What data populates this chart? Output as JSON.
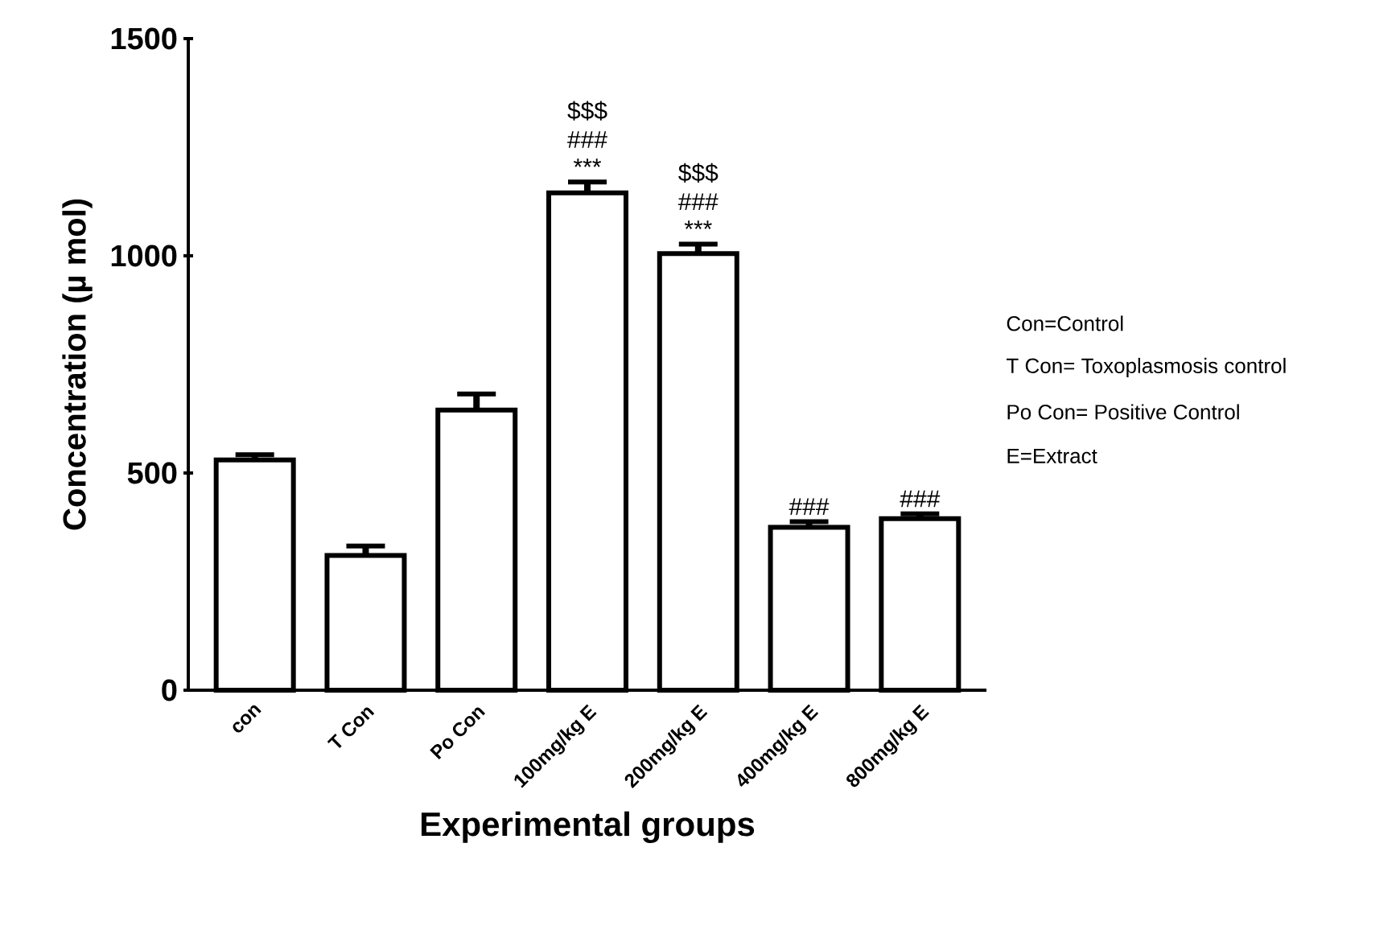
{
  "chart_data": {
    "type": "bar",
    "xlabel": "Experimental groups",
    "ylabel": "Concentration (µ mol)",
    "categories": [
      "con",
      "T Con",
      "Po Con",
      "100mg/kg E",
      "200mg/kg E",
      "400mg/kg E",
      "800mg/kg E"
    ],
    "values": [
      530,
      310,
      645,
      1145,
      1005,
      375,
      395
    ],
    "errors": [
      12,
      22,
      37,
      25,
      22,
      13,
      11
    ],
    "color": "#000000",
    "ylim": [
      0,
      1500
    ],
    "yticks": [
      0,
      500,
      1000,
      1500
    ],
    "grid": false,
    "annotations": [
      {
        "text": "***",
        "x": "100mg/kg E",
        "y": 1145
      },
      {
        "text": "###",
        "x": "100mg/kg E",
        "y": 1145
      },
      {
        "text": "$$$",
        "x": "100mg/kg E",
        "y": 1145
      },
      {
        "text": "***",
        "x": "200mg/kg E",
        "y": 1005
      },
      {
        "text": "###",
        "x": "200mg/kg E",
        "y": 1005
      },
      {
        "text": "$$$",
        "x": "200mg/kg E",
        "y": 1005
      },
      {
        "text": "###",
        "x": "400mg/kg E",
        "y": 375
      },
      {
        "text": "###",
        "x": "800mg/kg E",
        "y": 395
      },
      "Con=Control",
      "T Con= Toxoplasmosis control",
      "Po Con= Positive Control",
      "E=Extract"
    ]
  }
}
